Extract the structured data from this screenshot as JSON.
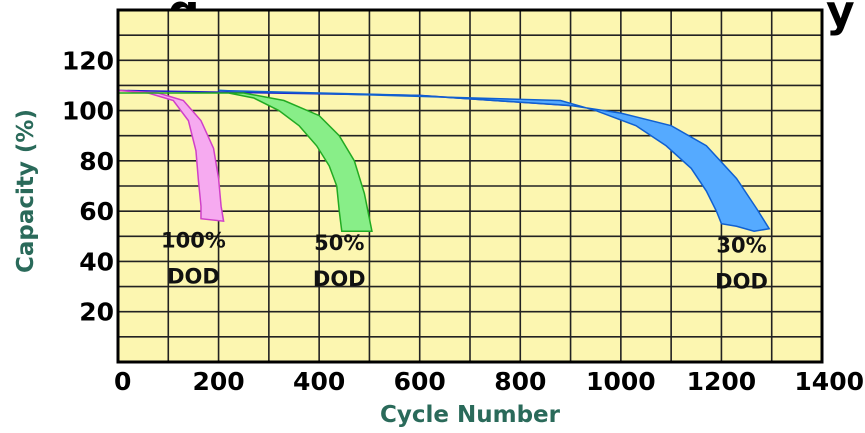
{
  "chart_data": {
    "type": "area",
    "title": "",
    "xlabel": "Cycle Number",
    "ylabel": "Capacity (%)",
    "xlim": [
      0,
      1400
    ],
    "ylim": [
      0,
      140
    ],
    "x_ticks": [
      0,
      200,
      400,
      600,
      800,
      1000,
      1200,
      1400
    ],
    "y_ticks": [
      20,
      40,
      60,
      80,
      100,
      120
    ],
    "grid": true,
    "colors": {
      "plot_bg": "#fcf6b0",
      "grid": "#222222",
      "axis_title": "#2a6a5a",
      "baseline_line": "#2222cc"
    },
    "series": [
      {
        "name": "100% DOD",
        "label_lines": [
          "100%",
          "DOD"
        ],
        "fill": "#f6aaf0",
        "stroke": "#d040c8",
        "upper": [
          [
            0,
            108
          ],
          [
            80,
            107
          ],
          [
            130,
            104
          ],
          [
            165,
            96
          ],
          [
            190,
            85
          ],
          [
            200,
            73
          ],
          [
            205,
            62
          ],
          [
            210,
            56
          ]
        ],
        "lower": [
          [
            0,
            108
          ],
          [
            60,
            107
          ],
          [
            110,
            104
          ],
          [
            140,
            96
          ],
          [
            155,
            84
          ],
          [
            160,
            72
          ],
          [
            165,
            62
          ],
          [
            165,
            57
          ]
        ]
      },
      {
        "name": "50% DOD",
        "label_lines": [
          "50%",
          "DOD"
        ],
        "fill": "#88ee88",
        "stroke": "#22aa22",
        "upper": [
          [
            0,
            107
          ],
          [
            250,
            107
          ],
          [
            330,
            104
          ],
          [
            400,
            98
          ],
          [
            440,
            90
          ],
          [
            470,
            80
          ],
          [
            490,
            67
          ],
          [
            500,
            57
          ],
          [
            505,
            52
          ]
        ],
        "lower": [
          [
            220,
            107
          ],
          [
            270,
            105
          ],
          [
            320,
            100
          ],
          [
            360,
            94
          ],
          [
            395,
            86
          ],
          [
            420,
            78
          ],
          [
            435,
            70
          ],
          [
            440,
            60
          ],
          [
            445,
            52
          ]
        ]
      },
      {
        "name": "30% DOD",
        "label_lines": [
          "30%",
          "DOD"
        ],
        "fill": "#55aaff",
        "stroke": "#1060d0",
        "upper": [
          [
            200,
            108
          ],
          [
            600,
            106
          ],
          [
            900,
            102
          ],
          [
            1000,
            99
          ],
          [
            1100,
            94
          ],
          [
            1170,
            86
          ],
          [
            1230,
            73
          ],
          [
            1270,
            61
          ],
          [
            1295,
            53
          ]
        ],
        "lower": [
          [
            880,
            104
          ],
          [
            950,
            100
          ],
          [
            1030,
            94
          ],
          [
            1090,
            86
          ],
          [
            1140,
            77
          ],
          [
            1170,
            68
          ],
          [
            1190,
            60
          ],
          [
            1200,
            55
          ],
          [
            1230,
            54
          ],
          [
            1265,
            52
          ]
        ]
      }
    ]
  },
  "title_fragment_left": "g",
  "title_fragment_right": "y"
}
